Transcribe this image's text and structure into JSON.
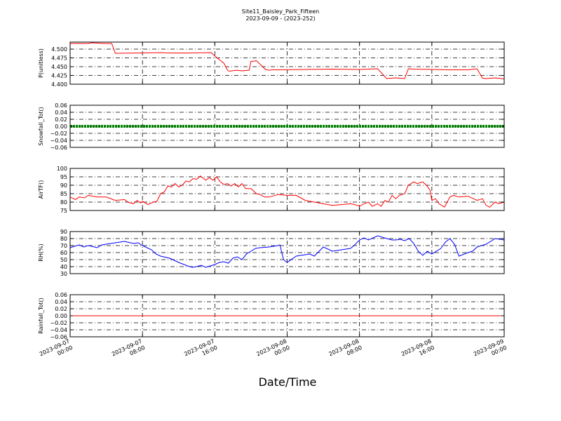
{
  "title_line1": "Site11_Baisley_Park_Fifteen",
  "title_line2": "2023-09-09 - (2023-252)",
  "xlabel": "Date/Time",
  "x_tick_labels": [
    [
      "2023-09-07",
      "00:00"
    ],
    [
      "2023-09-07",
      "08:00"
    ],
    [
      "2023-09-07",
      "16:00"
    ],
    [
      "2023-09-08",
      "00:00"
    ],
    [
      "2023-09-08",
      "08:00"
    ],
    [
      "2023-09-08",
      "16:00"
    ],
    [
      "2023-09-09",
      "00:00"
    ]
  ],
  "colors": {
    "red": "#ff0000",
    "green": "#008000",
    "blue": "#0000ff"
  },
  "chart_data": [
    {
      "type": "line",
      "ylabel": "P(unitless)",
      "ylim": [
        4.4,
        4.52
      ],
      "yticks": [
        4.4,
        4.425,
        4.45,
        4.475,
        4.5
      ],
      "ytick_labels": [
        "4.400",
        "4.425",
        "4.450",
        "4.475",
        "4.500"
      ],
      "grid": true,
      "color": "red",
      "x_range_hours": [
        0,
        48
      ],
      "x": [
        0,
        2,
        2.4,
        3.8,
        4.6,
        5,
        10,
        11,
        13,
        15.6,
        16.2,
        17,
        17.4,
        17.6,
        18.4,
        19,
        19.8,
        20,
        20.4,
        20.6,
        21.6,
        22,
        22.4,
        23,
        26,
        29,
        32,
        34,
        35,
        36,
        37,
        37.4,
        38,
        40,
        42,
        44,
        45,
        45.6,
        46,
        47,
        48
      ],
      "y": [
        4.516,
        4.516,
        4.518,
        4.516,
        4.516,
        4.488,
        4.49,
        4.489,
        4.489,
        4.49,
        4.476,
        4.46,
        4.44,
        4.437,
        4.44,
        4.438,
        4.44,
        4.465,
        4.466,
        4.467,
        4.442,
        4.44,
        4.441,
        4.441,
        4.442,
        4.443,
        4.442,
        4.444,
        4.416,
        4.418,
        4.416,
        4.444,
        4.443,
        4.442,
        4.441,
        4.441,
        4.444,
        4.417,
        4.416,
        4.418,
        4.415
      ]
    },
    {
      "type": "line",
      "ylabel": "Snowfall_Tot()",
      "ylim": [
        -0.06,
        0.06
      ],
      "yticks": [
        -0.06,
        -0.04,
        -0.02,
        0,
        0.02,
        0.04,
        0.06
      ],
      "ytick_labels": [
        "−0.06",
        "−0.04",
        "−0.02",
        "0.00",
        "0.02",
        "0.04",
        "0.06"
      ],
      "grid": true,
      "color": "green",
      "marker": "dots",
      "x_range_hours": [
        0,
        48
      ],
      "x": [
        0,
        48
      ],
      "y": [
        0,
        0
      ]
    },
    {
      "type": "line",
      "ylabel": "AirTF()",
      "ylim": [
        75,
        100
      ],
      "yticks": [
        75,
        80,
        85,
        90,
        95,
        100
      ],
      "ytick_labels": [
        "75",
        "80",
        "85",
        "90",
        "95",
        "100"
      ],
      "grid": true,
      "color": "red",
      "x_range_hours": [
        0,
        48
      ],
      "x": [
        0,
        0.6,
        1,
        1.6,
        2,
        3,
        4,
        5,
        6,
        6.4,
        7,
        7.4,
        7.8,
        8,
        8.6,
        9.2,
        9.6,
        10,
        10.4,
        10.8,
        11.2,
        11.6,
        12,
        12.4,
        12.8,
        13.2,
        13.6,
        14,
        14.4,
        15,
        15.4,
        15.8,
        16.2,
        16.6,
        17,
        17.4,
        17.8,
        18.2,
        18.6,
        19,
        19.4,
        20,
        20.6,
        21,
        21.5,
        22,
        23,
        24,
        25,
        26,
        27,
        28,
        29,
        30,
        31,
        31.5,
        32,
        32.5,
        33,
        33.4,
        34,
        34.4,
        34.8,
        35.2,
        35.6,
        36,
        36.4,
        37,
        37.4,
        38,
        38.4,
        39,
        39.4,
        39.8,
        40,
        40.4,
        40.8,
        41.4,
        42,
        42.4,
        43,
        44,
        45,
        45.6,
        46,
        46.4,
        47,
        47.4,
        48
      ],
      "y": [
        83,
        81.5,
        83,
        82.5,
        84,
        83,
        83,
        81,
        81.5,
        80,
        79,
        81,
        79.5,
        80.5,
        78.5,
        80,
        80.5,
        85,
        86,
        89.5,
        89,
        91,
        89,
        90,
        92.5,
        92,
        94,
        93.5,
        95.5,
        93,
        94.5,
        93,
        95,
        92,
        90.5,
        91,
        89.5,
        91,
        89,
        91,
        88,
        88,
        85,
        84.5,
        83,
        83,
        84.5,
        84,
        84,
        81,
        80,
        79,
        78,
        78.5,
        79,
        78.5,
        77.5,
        79,
        80,
        77.5,
        79,
        77.5,
        81,
        80,
        84,
        82,
        84,
        85,
        90,
        92,
        91,
        92,
        90,
        87,
        81,
        82,
        79,
        77,
        83,
        84,
        83,
        83.5,
        81,
        82,
        78,
        77,
        80,
        79,
        80
      ]
    },
    {
      "type": "line",
      "ylabel": "RH(%)",
      "ylim": [
        30,
        90
      ],
      "yticks": [
        30,
        40,
        50,
        60,
        70,
        80,
        90
      ],
      "ytick_labels": [
        "30",
        "40",
        "50",
        "60",
        "70",
        "80",
        "90"
      ],
      "grid": true,
      "color": "blue",
      "x_range_hours": [
        0,
        48
      ],
      "x": [
        0,
        1,
        1.5,
        2,
        3,
        3.5,
        4,
        5,
        6,
        7,
        7.5,
        8,
        9,
        9.5,
        10,
        11,
        12,
        13,
        13.5,
        14,
        14.5,
        15,
        15.5,
        16,
        16.5,
        17,
        17.5,
        18,
        18.5,
        19,
        19.5,
        20,
        20.5,
        21,
        22,
        23,
        23.2,
        23.6,
        24,
        25,
        26,
        26.5,
        27,
        28,
        29,
        30,
        31,
        31.4,
        32,
        32.5,
        33,
        34,
        35,
        35.6,
        36,
        36.5,
        37,
        37.5,
        38,
        38.5,
        39,
        39.5,
        40,
        41,
        41.5,
        42,
        42.5,
        43,
        44,
        44.5,
        45,
        45.5,
        46,
        47,
        48
      ],
      "y": [
        67,
        71,
        68,
        70,
        67,
        71,
        72,
        74,
        76,
        73,
        74,
        70,
        64,
        58,
        55,
        52,
        46,
        41,
        39,
        40,
        42,
        39,
        41,
        43,
        46,
        47,
        45,
        52,
        54,
        50,
        58,
        62,
        66,
        67,
        68,
        70,
        71,
        50,
        46,
        55,
        57,
        58,
        55,
        68,
        62,
        64,
        66,
        70,
        78,
        81,
        78,
        84,
        80,
        78,
        78,
        79,
        77,
        80,
        73,
        62,
        56,
        62,
        58,
        66,
        75,
        80,
        72,
        55,
        60,
        62,
        68,
        70,
        72,
        80,
        78
      ]
    },
    {
      "type": "line",
      "ylabel": "Rainfall_Tot()",
      "ylim": [
        -0.06,
        0.06
      ],
      "yticks": [
        -0.06,
        -0.04,
        -0.02,
        0,
        0.02,
        0.04,
        0.06
      ],
      "ytick_labels": [
        "−0.06",
        "−0.04",
        "−0.02",
        "0.00",
        "0.02",
        "0.04",
        "0.06"
      ],
      "grid": true,
      "color": "red",
      "x_range_hours": [
        0,
        48
      ],
      "x": [
        0,
        48
      ],
      "y": [
        0,
        0
      ]
    }
  ]
}
